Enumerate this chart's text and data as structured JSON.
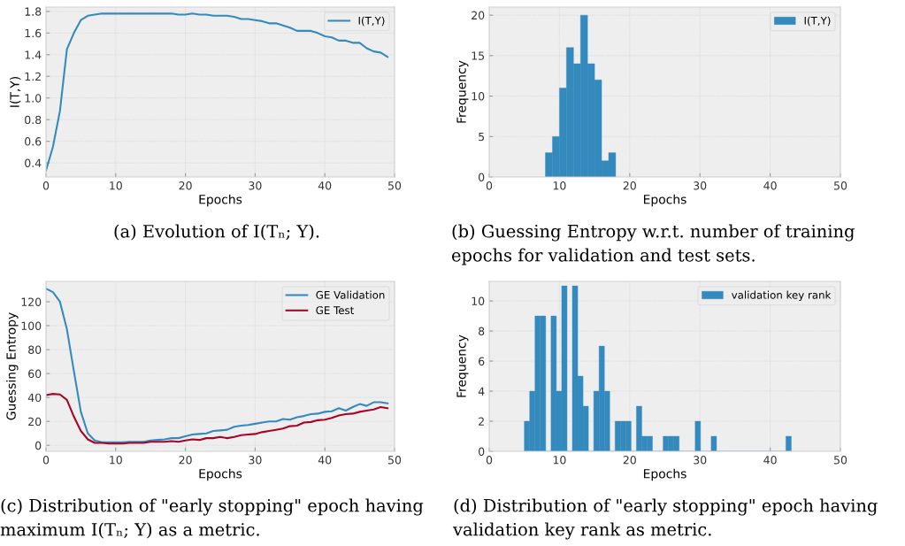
{
  "chart_data": [
    {
      "type": "line",
      "xlabel": "Epochs",
      "ylabel": "I(T,Y)",
      "x": [
        0,
        1,
        2,
        3,
        4,
        5,
        6,
        7,
        8,
        9,
        10,
        11,
        12,
        13,
        14,
        15,
        16,
        17,
        18,
        19,
        20,
        21,
        22,
        23,
        24,
        25,
        26,
        27,
        28,
        29,
        30,
        31,
        32,
        33,
        34,
        35,
        36,
        37,
        38,
        39,
        40,
        41,
        42,
        43,
        44,
        45,
        46,
        47,
        48,
        49
      ],
      "series": [
        {
          "name": "I(T,Y)",
          "color": "#348abd",
          "values": [
            0.33,
            0.55,
            0.88,
            1.45,
            1.6,
            1.72,
            1.76,
            1.77,
            1.78,
            1.78,
            1.78,
            1.78,
            1.78,
            1.78,
            1.78,
            1.78,
            1.78,
            1.78,
            1.78,
            1.77,
            1.77,
            1.78,
            1.77,
            1.77,
            1.76,
            1.76,
            1.76,
            1.75,
            1.73,
            1.73,
            1.72,
            1.71,
            1.69,
            1.69,
            1.67,
            1.65,
            1.62,
            1.62,
            1.62,
            1.6,
            1.57,
            1.56,
            1.53,
            1.53,
            1.51,
            1.51,
            1.46,
            1.43,
            1.42,
            1.38
          ]
        }
      ],
      "xlim": [
        0,
        50
      ],
      "xticks": [
        0,
        10,
        20,
        30,
        40,
        50
      ],
      "ylim": [
        0.27,
        1.84
      ],
      "yticks": [
        0.4,
        0.6,
        0.8,
        {
          "value": 1,
          "label": "1.0"
        },
        1.2,
        1.4,
        1.6,
        1.8
      ],
      "grid": true,
      "legend": "top right",
      "annotations": [
        "(a) Evolution of I(Tₙ; Y)."
      ]
    },
    {
      "type": "histogram",
      "xlabel": "Epochs",
      "ylabel": "Frequency",
      "bins": [
        8,
        9,
        10,
        11,
        12,
        13,
        14,
        15,
        16,
        17,
        18
      ],
      "series": [
        {
          "name": "I(T,Y)",
          "color": "#348abd",
          "values": [
            3,
            5,
            11,
            16,
            14,
            20,
            14,
            12,
            2,
            3
          ]
        }
      ],
      "xlim": [
        0,
        50
      ],
      "xticks": [
        0,
        10,
        20,
        30,
        40,
        50
      ],
      "ylim": [
        0,
        21
      ],
      "yticks": [
        0,
        5,
        10,
        15,
        20
      ],
      "grid": true,
      "legend": "top right",
      "annotations": [
        "(b) Guessing Entropy w.r.t. number of training",
        "epochs for validation and test sets."
      ]
    },
    {
      "type": "line",
      "xlabel": "Epochs",
      "ylabel": "Guessing Entropy",
      "x": [
        0,
        1,
        2,
        3,
        4,
        5,
        6,
        7,
        8,
        9,
        10,
        11,
        12,
        13,
        14,
        15,
        16,
        17,
        18,
        19,
        20,
        21,
        22,
        23,
        24,
        25,
        26,
        27,
        28,
        29,
        30,
        31,
        32,
        33,
        34,
        35,
        36,
        37,
        38,
        39,
        40,
        41,
        42,
        43,
        44,
        45,
        46,
        47,
        48,
        49
      ],
      "series": [
        {
          "name": "GE Validation",
          "color": "#348abd",
          "values": [
            131,
            128,
            120,
            97,
            62,
            28,
            10,
            4,
            2.5,
            2.5,
            2.5,
            2.5,
            3,
            3,
            3,
            4,
            4.5,
            5,
            6,
            6,
            7.5,
            9,
            9.5,
            10,
            12,
            12.5,
            13,
            15.5,
            16.5,
            17,
            18,
            19,
            20,
            20,
            22,
            21.5,
            23.5,
            24.5,
            26,
            26.5,
            28,
            28.5,
            31,
            29,
            32,
            34.5,
            33,
            36,
            36,
            35
          ]
        },
        {
          "name": "GE Test",
          "color": "#a60628",
          "values": [
            42,
            43,
            42.5,
            38,
            24,
            12,
            5,
            2,
            2,
            1.5,
            1.5,
            1.5,
            2,
            2,
            2,
            3,
            3,
            3,
            3.5,
            3,
            4,
            5,
            4.5,
            6,
            6,
            7,
            6,
            7,
            8.5,
            9,
            9.5,
            11,
            12,
            13,
            14,
            16,
            16.5,
            19,
            19.5,
            21,
            21.5,
            23,
            25,
            26,
            26.5,
            28,
            29,
            30,
            32,
            31
          ]
        }
      ],
      "xlim": [
        0,
        50
      ],
      "xticks": [
        0,
        10,
        20,
        30,
        40,
        50
      ],
      "ylim": [
        -5,
        137
      ],
      "yticks": [
        0,
        20,
        40,
        60,
        80,
        100,
        120
      ],
      "grid": true,
      "legend": "top right",
      "annotations": [
        "(c) Distribution of \"early stopping\" epoch having",
        "maximum I(Tₙ; Y) as a metric."
      ]
    },
    {
      "type": "histogram",
      "xlabel": "Epochs",
      "ylabel": "Frequency",
      "bins": [
        5,
        5.76,
        6.52,
        7.28,
        8.04,
        8.8,
        9.56,
        10.32,
        11.08,
        11.84,
        12.6,
        13.36,
        14.12,
        14.88,
        15.64,
        16.4,
        17.16,
        17.92,
        18.68,
        19.44,
        20.2,
        20.96,
        21.72,
        22.48,
        23.24,
        24,
        24.76,
        25.52,
        26.28,
        27.04,
        27.8,
        28.56,
        29.32,
        30.08,
        30.84,
        31.6,
        32.36,
        33.12,
        33.88,
        34.64,
        35.4,
        36.16,
        36.92,
        37.68,
        38.44,
        39.2,
        39.96,
        40.72,
        41.48,
        42.24,
        43
      ],
      "series": [
        {
          "name": "validation key rank",
          "color": "#348abd",
          "values": [
            2,
            4,
            9,
            9,
            0,
            9,
            4,
            11,
            0,
            11,
            5,
            3,
            0,
            4,
            7,
            4,
            0,
            2,
            2,
            2,
            0,
            3,
            1,
            1,
            0,
            0,
            1,
            1,
            1,
            0,
            0,
            0,
            2,
            0,
            0,
            1,
            0,
            0,
            0,
            0,
            0,
            0,
            0,
            0,
            0,
            0,
            0,
            0,
            0,
            1
          ]
        }
      ],
      "xlim": [
        0,
        50
      ],
      "xticks": [
        0,
        10,
        20,
        30,
        40,
        50
      ],
      "ylim": [
        0,
        11.3
      ],
      "yticks": [
        0,
        2,
        4,
        6,
        8,
        10
      ],
      "grid": true,
      "legend": "top right",
      "annotations": [
        "(d) Distribution of \"early stopping\" epoch having",
        "validation key rank as metric."
      ]
    }
  ]
}
